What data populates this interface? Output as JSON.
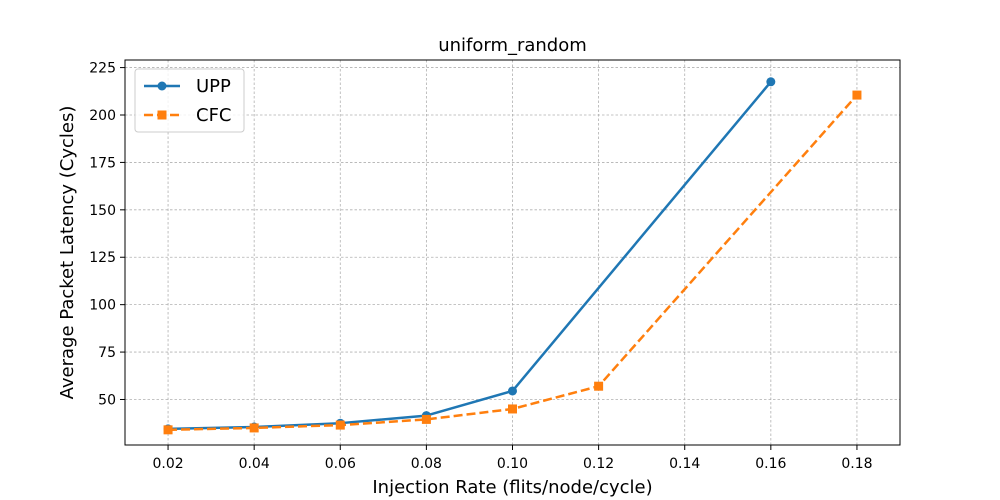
{
  "chart_data": {
    "type": "line",
    "title": "uniform_random",
    "xlabel": "Injection Rate (flits/node/cycle)",
    "ylabel": "Average Packet Latency (Cycles)",
    "xlim": [
      0.01,
      0.19
    ],
    "ylim": [
      26,
      229
    ],
    "x_ticks": [
      "0.02",
      "0.04",
      "0.06",
      "0.08",
      "0.10",
      "0.12",
      "0.14",
      "0.16",
      "0.18"
    ],
    "x_tick_values": [
      0.02,
      0.04,
      0.06,
      0.08,
      0.1,
      0.12,
      0.14,
      0.16,
      0.18
    ],
    "y_ticks": [
      "50",
      "75",
      "100",
      "125",
      "150",
      "175",
      "200",
      "225"
    ],
    "y_tick_values": [
      50,
      75,
      100,
      125,
      150,
      175,
      200,
      225
    ],
    "grid": true,
    "legend_position": "upper-left",
    "series": [
      {
        "name": "UPP",
        "color": "#1f77b4",
        "marker": "circle",
        "line_style": "solid",
        "x": [
          0.02,
          0.04,
          0.06,
          0.08,
          0.1,
          0.16
        ],
        "y": [
          34.5,
          35.5,
          37.5,
          41.5,
          54.5,
          217.5
        ]
      },
      {
        "name": "CFC",
        "color": "#ff7f0e",
        "marker": "square",
        "line_style": "dashed",
        "x": [
          0.02,
          0.04,
          0.06,
          0.08,
          0.1,
          0.12,
          0.18
        ],
        "y": [
          34.0,
          35.0,
          36.5,
          39.5,
          45.0,
          57.0,
          210.5
        ]
      }
    ]
  }
}
